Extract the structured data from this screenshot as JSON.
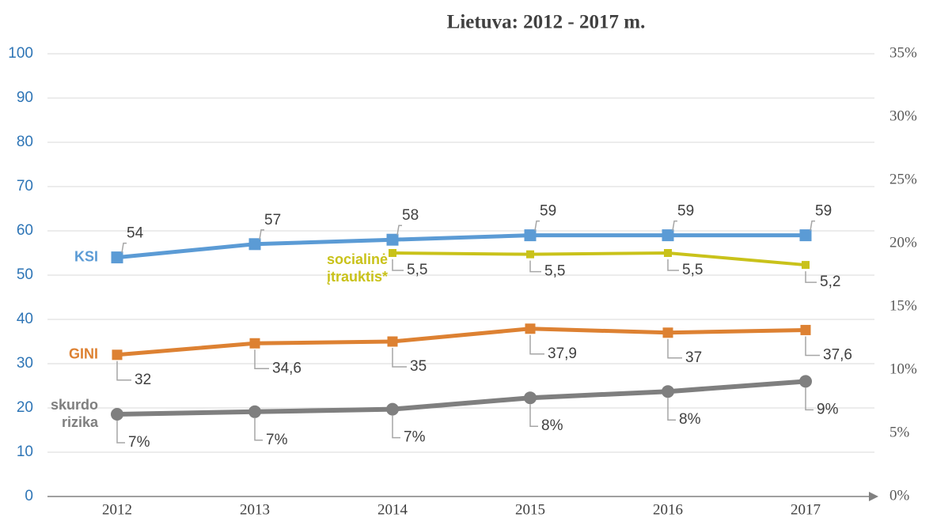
{
  "chart_data": {
    "type": "line",
    "title": "Lietuva: 2012 - 2017 m.",
    "categories": [
      "2012",
      "2013",
      "2014",
      "2015",
      "2016",
      "2017"
    ],
    "ylim": [
      0,
      100
    ],
    "yticks": [
      0,
      10,
      20,
      30,
      40,
      50,
      60,
      70,
      80,
      90,
      100
    ],
    "y2lim": [
      0,
      35
    ],
    "y2ticks": [
      {
        "value": 0,
        "label": "0%"
      },
      {
        "value": 5,
        "label": "5%"
      },
      {
        "value": 10,
        "label": "10%"
      },
      {
        "value": 15,
        "label": "15%"
      },
      {
        "value": 20,
        "label": "20%"
      },
      {
        "value": 25,
        "label": "25%"
      },
      {
        "value": 30,
        "label": "30%"
      },
      {
        "value": 35,
        "label": "35%"
      }
    ],
    "y3lim": [
      0,
      10
    ],
    "grid": true,
    "series": [
      {
        "name": "KSI",
        "color": "#5b9bd5",
        "marker": "square",
        "values": [
          54,
          57,
          58,
          59,
          59,
          59
        ]
      },
      {
        "name": "socialinė įtrauktis*",
        "color": "#c9c21a",
        "marker": "square",
        "axis": "y3",
        "values": [
          null,
          null,
          5.5,
          5.47,
          5.5,
          5.23
        ],
        "value_labels": [
          null,
          null,
          "5,5",
          "5,5",
          "5,5",
          "5,2"
        ]
      },
      {
        "name": "GINI",
        "color": "#dd8132",
        "marker": "square",
        "values": [
          32,
          34.6,
          35,
          37.9,
          37,
          37.6
        ],
        "value_labels": [
          "32",
          "34,6",
          "35",
          "37,9",
          "37",
          "37,6"
        ]
      },
      {
        "name": "skurdo rizika",
        "color": "#7f7f7f",
        "marker": "circle",
        "axis": "y2",
        "values": [
          6.5,
          6.7,
          6.9,
          7.8,
          8.3,
          9.1
        ],
        "value_labels": [
          "7%",
          "7%",
          "7%",
          "8%",
          "8%",
          "9%"
        ]
      }
    ]
  }
}
